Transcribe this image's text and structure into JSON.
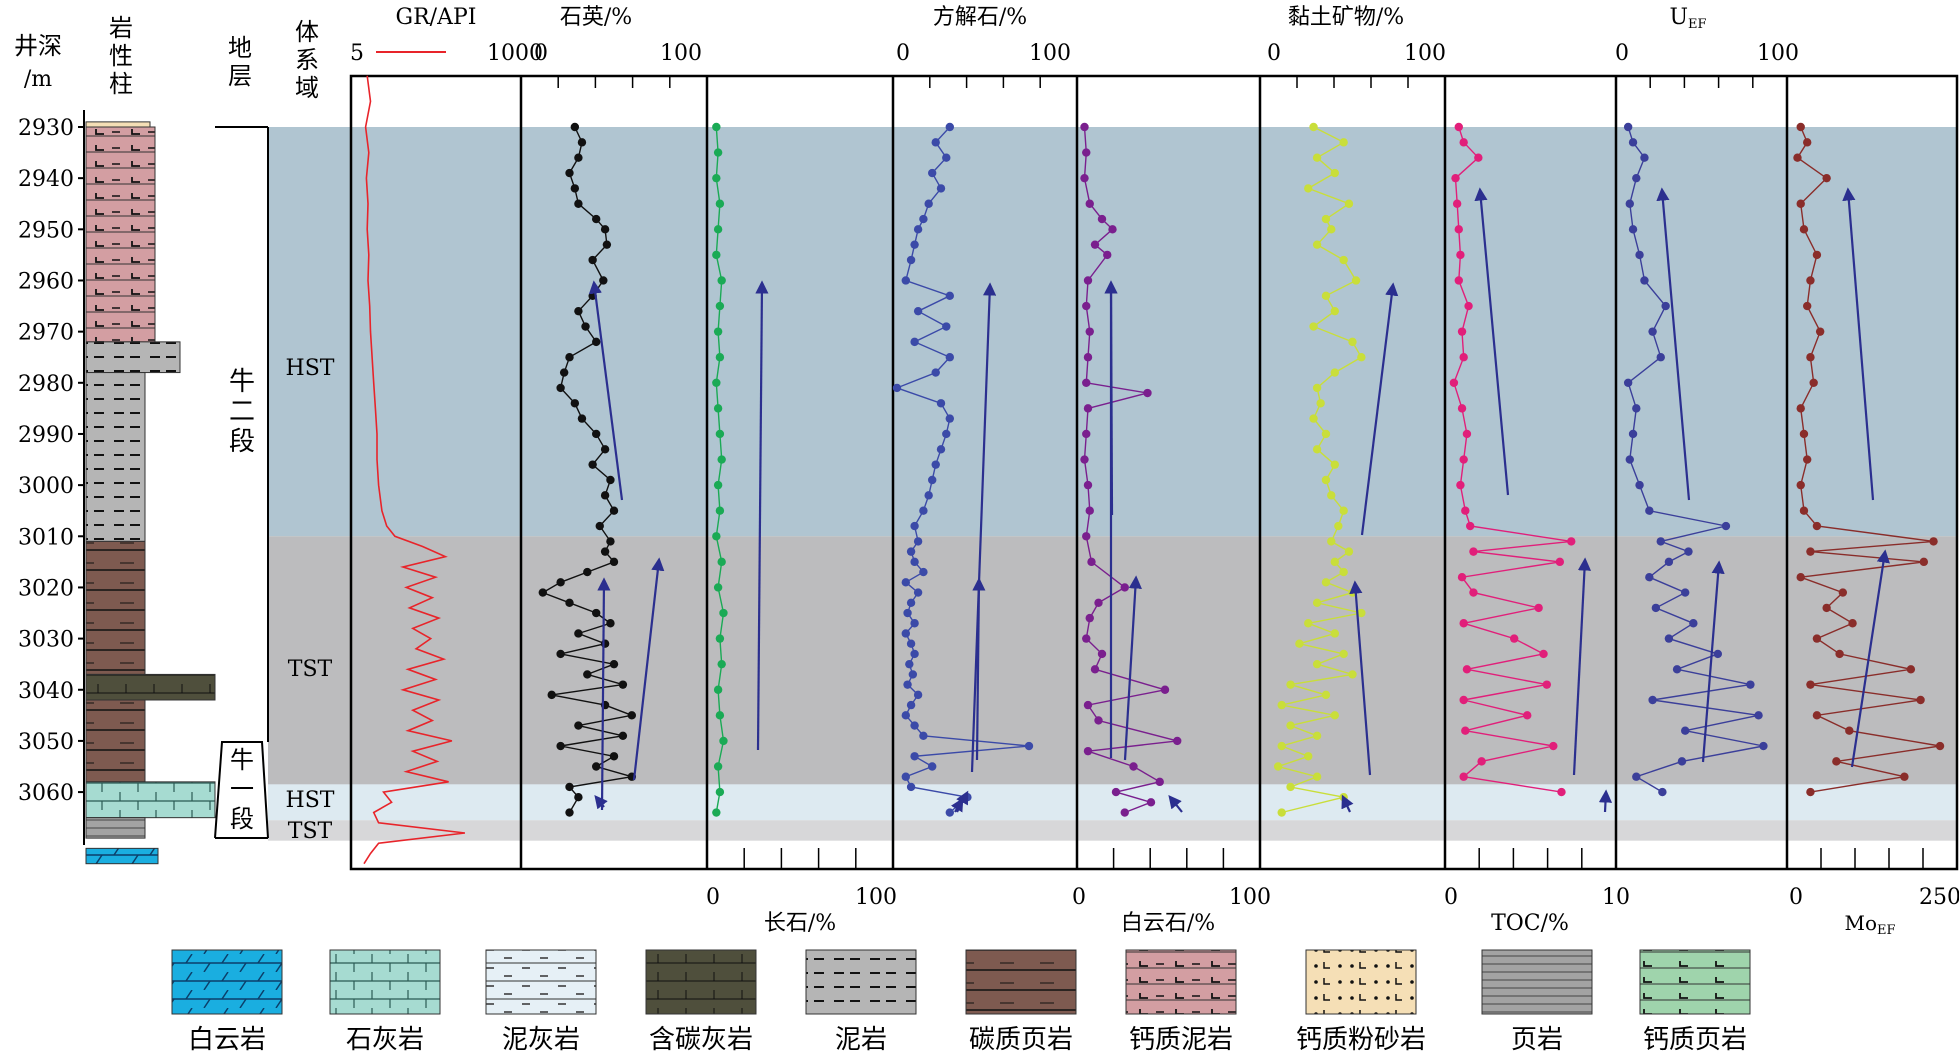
{
  "header": {
    "depth_label_1": "井深",
    "depth_label_2": "/m",
    "litho_label": [
      "岩",
      "性",
      "柱"
    ],
    "strata_label": [
      "地",
      "层"
    ],
    "systems_label": [
      "体",
      "系",
      "域"
    ]
  },
  "depth_ticks": [
    "2930",
    "2940",
    "2950",
    "2960",
    "2970",
    "2980",
    "2990",
    "3000",
    "3010",
    "3020",
    "3030",
    "3040",
    "3050",
    "3060"
  ],
  "strata": {
    "upper": [
      "牛",
      "二",
      "段"
    ],
    "lower": [
      "牛",
      "一",
      "段"
    ]
  },
  "systems_tracts": [
    "HST",
    "TST",
    "HST",
    "TST"
  ],
  "colors": {
    "hst_band": "#b0c5d1",
    "tst_band": "#bcbcbe",
    "hst_lower_band": "#ddeaf1",
    "tst_lower_band": "#d7d7d9",
    "trend_arrow": "#2b2f8f",
    "gr": "#e8242a",
    "quartz": "#111111",
    "feldspar": "#1aaa55",
    "calcite": "#3b4aa8",
    "dolomite": "#7a1f8e",
    "clay": "#c9de3a",
    "toc": "#e11f7a",
    "uef": "#3b3f9a",
    "moef": "#8a2d2a"
  },
  "legend": [
    "白云岩",
    "石灰岩",
    "泥灰岩",
    "含碳灰岩",
    "泥岩",
    "碳质页岩",
    "钙质泥岩",
    "钙质粉砂岩",
    "页岩",
    "钙质页岩"
  ],
  "chart_data": [
    {
      "type": "line",
      "name": "GR",
      "title": "GR/API",
      "xlim": [
        5,
        1000
      ],
      "tick_labels": [
        "5",
        "1000"
      ],
      "y": [
        2920,
        2925,
        2930,
        2935,
        2940,
        2945,
        2950,
        2955,
        2960,
        2965,
        2970,
        2975,
        2980,
        2985,
        2990,
        2995,
        3000,
        3005,
        3008,
        3010,
        3012,
        3014,
        3016,
        3018,
        3020,
        3022,
        3024,
        3026,
        3028,
        3030,
        3032,
        3034,
        3036,
        3038,
        3040,
        3042,
        3044,
        3046,
        3048,
        3050,
        3052,
        3054,
        3056,
        3058,
        3060,
        3062,
        3064,
        3066,
        3068,
        3070,
        3072,
        3074
      ],
      "x": [
        80,
        100,
        70,
        90,
        75,
        85,
        80,
        90,
        85,
        95,
        100,
        110,
        120,
        130,
        140,
        140,
        150,
        170,
        200,
        250,
        420,
        560,
        300,
        500,
        320,
        480,
        340,
        520,
        360,
        470,
        380,
        550,
        330,
        500,
        300,
        520,
        360,
        480,
        330,
        600,
        360,
        510,
        320,
        580,
        180,
        230,
        120,
        150,
        680,
        150,
        100,
        60
      ]
    },
    {
      "type": "line",
      "name": "石英",
      "title": "石英/%",
      "xlim": [
        0,
        100
      ],
      "tick_labels": [
        "0",
        "100"
      ],
      "y": [
        2930,
        2933,
        2936,
        2939,
        2942,
        2945,
        2948,
        2950,
        2953,
        2956,
        2960,
        2963,
        2966,
        2969,
        2972,
        2975,
        2978,
        2981,
        2984,
        2987,
        2990,
        2993,
        2996,
        2999,
        3002,
        3005,
        3008,
        3011,
        3013,
        3015,
        3017,
        3019,
        3021,
        3023,
        3025,
        3027,
        3029,
        3031,
        3033,
        3035,
        3037,
        3039,
        3041,
        3043,
        3045,
        3047,
        3049,
        3051,
        3053,
        3055,
        3057,
        3059,
        3061,
        3064
      ],
      "x": [
        28,
        32,
        30,
        25,
        28,
        30,
        40,
        45,
        46,
        38,
        44,
        38,
        30,
        34,
        40,
        25,
        22,
        20,
        28,
        32,
        40,
        45,
        38,
        48,
        45,
        50,
        42,
        48,
        45,
        50,
        35,
        20,
        10,
        25,
        40,
        48,
        30,
        45,
        20,
        50,
        35,
        55,
        15,
        45,
        60,
        30,
        55,
        20,
        50,
        40,
        60,
        25,
        30,
        25
      ]
    },
    {
      "type": "line",
      "name": "长石",
      "title": "长石/%",
      "xlim": [
        0,
        100
      ],
      "tick_labels": [
        "0",
        "100"
      ],
      "y": [
        2930,
        2935,
        2940,
        2945,
        2950,
        2955,
        2960,
        2965,
        2970,
        2975,
        2980,
        2985,
        2990,
        2995,
        3000,
        3005,
        3010,
        3015,
        3020,
        3025,
        3030,
        3035,
        3040,
        3045,
        3050,
        3055,
        3060,
        3064
      ],
      "x": [
        3,
        4,
        3,
        5,
        4,
        3,
        6,
        5,
        4,
        5,
        3,
        4,
        5,
        6,
        4,
        5,
        3,
        6,
        4,
        7,
        5,
        6,
        4,
        5,
        7,
        4,
        5,
        3
      ]
    },
    {
      "type": "line",
      "name": "方解石",
      "title": "方解石/%",
      "xlim": [
        0,
        100
      ],
      "tick_labels": [
        "0",
        "100"
      ],
      "y": [
        2930,
        2933,
        2936,
        2939,
        2942,
        2945,
        2948,
        2950,
        2953,
        2956,
        2960,
        2963,
        2966,
        2969,
        2972,
        2975,
        2978,
        2981,
        2984,
        2987,
        2990,
        2993,
        2996,
        2999,
        3002,
        3005,
        3008,
        3011,
        3013,
        3015,
        3017,
        3019,
        3021,
        3023,
        3025,
        3027,
        3029,
        3031,
        3033,
        3035,
        3037,
        3039,
        3041,
        3043,
        3045,
        3047,
        3049,
        3051,
        3053,
        3055,
        3057,
        3059,
        3061,
        3064
      ],
      "x": [
        30,
        22,
        28,
        20,
        25,
        18,
        15,
        12,
        10,
        8,
        5,
        30,
        12,
        28,
        10,
        30,
        22,
        0,
        25,
        30,
        28,
        25,
        22,
        20,
        18,
        15,
        10,
        12,
        8,
        10,
        15,
        5,
        12,
        8,
        6,
        10,
        5,
        8,
        10,
        7,
        9,
        6,
        12,
        8,
        5,
        10,
        15,
        75,
        10,
        20,
        5,
        8,
        40,
        30
      ]
    },
    {
      "type": "line",
      "name": "白云石",
      "title": "白云石/%",
      "xlim": [
        0,
        100
      ],
      "tick_labels": [
        "0",
        "100"
      ],
      "y": [
        2930,
        2935,
        2940,
        2945,
        2948,
        2950,
        2953,
        2955,
        2960,
        2965,
        2970,
        2975,
        2980,
        2982,
        2985,
        2990,
        2995,
        3000,
        3005,
        3010,
        3015,
        3020,
        3023,
        3026,
        3030,
        3033,
        3036,
        3040,
        3043,
        3046,
        3050,
        3052,
        3055,
        3058,
        3060,
        3062,
        3064
      ],
      "x": [
        2,
        3,
        2,
        5,
        12,
        18,
        8,
        15,
        4,
        3,
        5,
        4,
        3,
        38,
        4,
        3,
        2,
        4,
        5,
        3,
        6,
        25,
        10,
        5,
        3,
        12,
        8,
        48,
        4,
        10,
        55,
        4,
        30,
        45,
        20,
        40,
        25
      ]
    },
    {
      "type": "line",
      "name": "黏土矿物",
      "title": "黏土矿物/%",
      "xlim": [
        0,
        100
      ],
      "tick_labels": [
        "0",
        "100"
      ],
      "y": [
        2930,
        2933,
        2936,
        2939,
        2942,
        2945,
        2948,
        2950,
        2953,
        2956,
        2960,
        2963,
        2966,
        2969,
        2972,
        2975,
        2978,
        2981,
        2984,
        2987,
        2990,
        2993,
        2996,
        2999,
        3002,
        3005,
        3008,
        3011,
        3013,
        3015,
        3017,
        3019,
        3021,
        3023,
        3025,
        3027,
        3029,
        3031,
        3033,
        3035,
        3037,
        3039,
        3041,
        3043,
        3045,
        3047,
        3049,
        3051,
        3053,
        3055,
        3057,
        3059,
        3061,
        3064
      ],
      "x": [
        28,
        45,
        30,
        40,
        25,
        48,
        35,
        38,
        30,
        45,
        52,
        35,
        40,
        28,
        50,
        55,
        40,
        30,
        32,
        28,
        35,
        30,
        40,
        35,
        38,
        45,
        42,
        38,
        48,
        40,
        45,
        35,
        50,
        30,
        55,
        25,
        40,
        20,
        45,
        30,
        50,
        15,
        35,
        10,
        40,
        15,
        30,
        10,
        25,
        8,
        30,
        15,
        45,
        10
      ]
    },
    {
      "type": "line",
      "name": "TOC",
      "title": "TOC/%",
      "xlim": [
        0,
        10
      ],
      "tick_labels": [
        "0",
        "10"
      ],
      "y": [
        2930,
        2933,
        2936,
        2940,
        2945,
        2950,
        2955,
        2960,
        2965,
        2970,
        2975,
        2980,
        2985,
        2990,
        2995,
        3000,
        3005,
        3008,
        3011,
        3013,
        3015,
        3018,
        3021,
        3024,
        3027,
        3030,
        3033,
        3036,
        3039,
        3042,
        3045,
        3048,
        3051,
        3054,
        3057,
        3060
      ],
      "x": [
        0.6,
        0.9,
        1.8,
        0.4,
        0.5,
        0.6,
        0.7,
        0.6,
        1.2,
        0.8,
        0.9,
        0.3,
        0.8,
        1.1,
        0.9,
        0.7,
        1.0,
        1.3,
        7.5,
        1.5,
        6.8,
        0.8,
        1.5,
        5.5,
        0.9,
        4.0,
        5.8,
        1.1,
        6.0,
        0.9,
        4.8,
        1.0,
        6.4,
        2.0,
        0.9,
        6.9
      ]
    },
    {
      "type": "line",
      "name": "UEF",
      "title": "UEF",
      "xlim": [
        0,
        100
      ],
      "tick_labels": [
        "0",
        "100"
      ],
      "y": [
        2930,
        2933,
        2936,
        2940,
        2945,
        2950,
        2955,
        2960,
        2965,
        2970,
        2975,
        2980,
        2985,
        2990,
        2995,
        3000,
        3005,
        3008,
        3011,
        3013,
        3015,
        3018,
        3021,
        3024,
        3027,
        3030,
        3033,
        3036,
        3039,
        3042,
        3045,
        3048,
        3051,
        3054,
        3057,
        3060
      ],
      "x": [
        5,
        8,
        15,
        10,
        6,
        8,
        12,
        15,
        28,
        20,
        25,
        5,
        10,
        8,
        6,
        12,
        18,
        65,
        25,
        42,
        30,
        18,
        40,
        22,
        45,
        30,
        60,
        35,
        80,
        20,
        85,
        40,
        88,
        38,
        10,
        26
      ]
    },
    {
      "type": "line",
      "name": "MoEF",
      "title": "MoEF",
      "xlim": [
        0,
        250
      ],
      "tick_labels": [
        "0",
        "250"
      ],
      "y": [
        2930,
        2933,
        2936,
        2940,
        2945,
        2950,
        2955,
        2960,
        2965,
        2970,
        2975,
        2980,
        2985,
        2990,
        2995,
        3000,
        3005,
        3008,
        3011,
        3013,
        3015,
        3018,
        3021,
        3024,
        3027,
        3030,
        3033,
        3036,
        3039,
        3042,
        3045,
        3048,
        3051,
        3054,
        3057,
        3060
      ],
      "x": [
        15,
        25,
        10,
        55,
        15,
        20,
        40,
        30,
        25,
        45,
        30,
        35,
        15,
        20,
        25,
        15,
        20,
        40,
        220,
        30,
        205,
        15,
        80,
        55,
        95,
        40,
        75,
        185,
        30,
        200,
        40,
        90,
        230,
        70,
        175,
        30
      ]
    }
  ]
}
